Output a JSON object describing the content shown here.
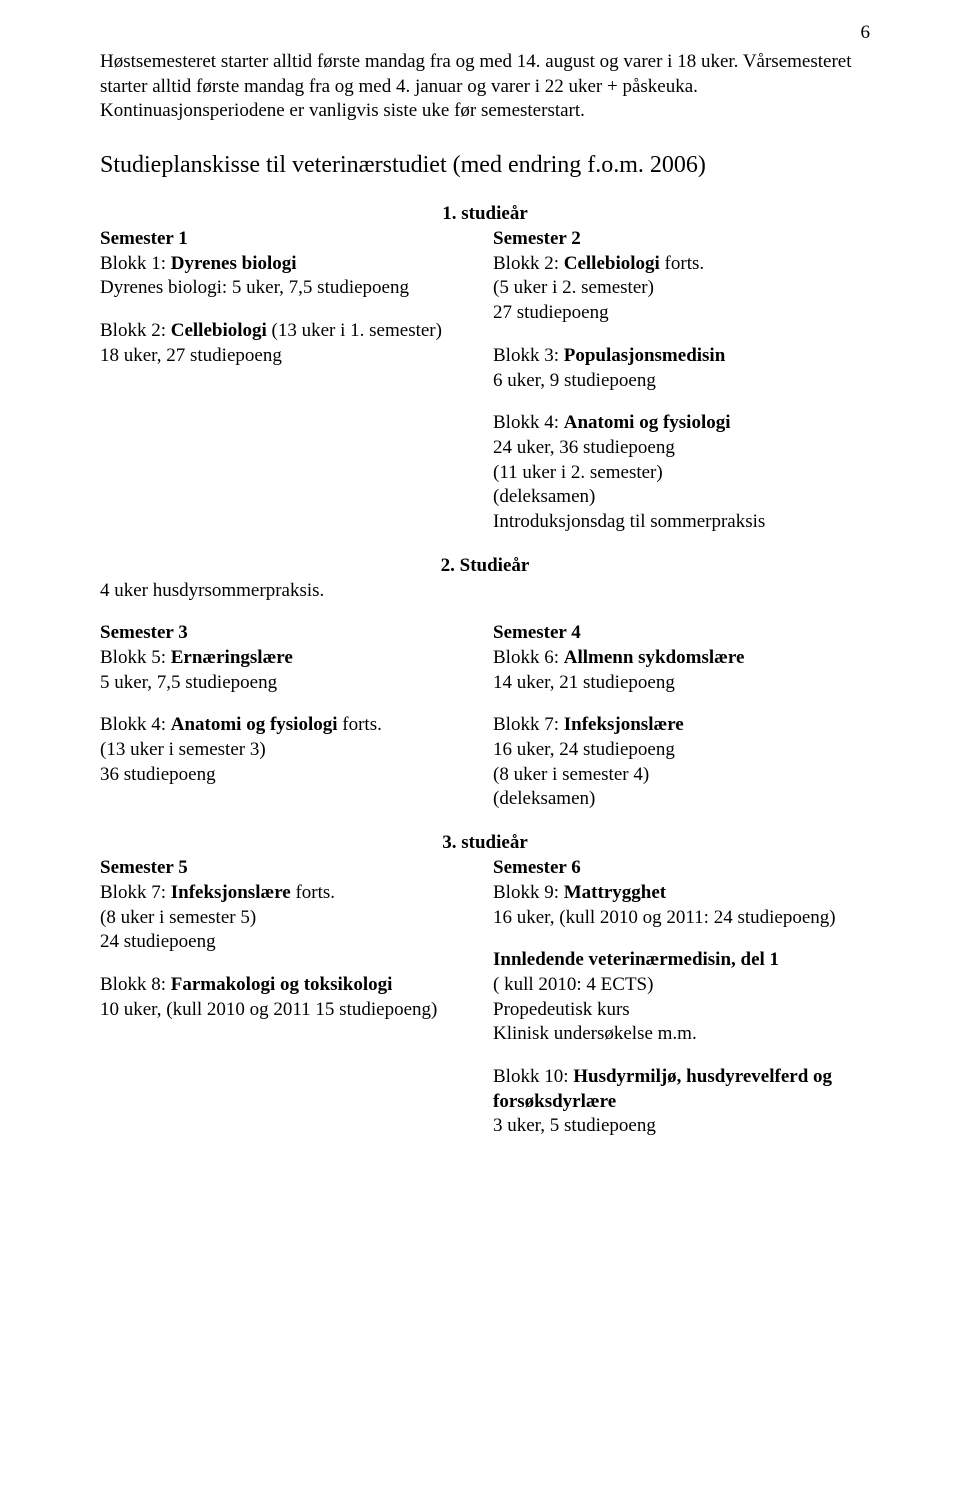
{
  "pageNumber": "6",
  "intro": "Høstsemesteret starter alltid første mandag fra og med 14. august og varer i 18 uker. Vårsemesteret starter alltid første mandag fra og med 4. januar og varer i 22 uker + påskeuka. Kontinuasjonsperiodene er vanligvis siste uke før semesterstart.",
  "sectionTitle": "Studieplanskisse til veterinærstudiet (med endring f.o.m. 2006)",
  "year1": {
    "heading": "1. studieår",
    "left": {
      "sem": "Semester 1",
      "l1a": "Blokk 1: ",
      "l1b": "Dyrenes biologi",
      "l2": "Dyrenes biologi: 5 uker, 7,5 studiepoeng",
      "l3a": "Blokk 2: ",
      "l3b": "Cellebiologi ",
      "l3c": "(13 uker i 1. semester)",
      "l4": "18 uker, 27 studiepoeng"
    },
    "right": {
      "sem": "Semester 2",
      "r1a": "Blokk 2: ",
      "r1b": "Cellebiologi ",
      "r1c": " forts.",
      "r2": "(5 uker i 2. semester)",
      "r3": "27 studiepoeng",
      "r4a": "Blokk 3: ",
      "r4b": "Populasjonsmedisin",
      "r5": "6 uker, 9 studiepoeng",
      "r6a": "Blokk 4: ",
      "r6b": "Anatomi og fysiologi",
      "r7": "24 uker, 36 studiepoeng",
      "r8": "(11 uker i 2. semester)",
      "r9": "(deleksamen)",
      "r10": "Introduksjonsdag til sommerpraksis"
    }
  },
  "year2": {
    "heading": "2. Studieår",
    "preline": "4 uker husdyrsommerpraksis.",
    "left": {
      "sem": "Semester 3",
      "l1a": "Blokk 5: ",
      "l1b": "Ernæringslære",
      "l2": "5 uker, 7,5 studiepoeng",
      "l3a": "Blokk 4: ",
      "l3b": "Anatomi og fysiologi ",
      "l3c": "forts.",
      "l4": "(13 uker i semester 3)",
      "l5": "36 studiepoeng"
    },
    "right": {
      "sem": "Semester 4",
      "r1a": "Blokk 6: ",
      "r1b": "Allmenn sykdomslære",
      "r2": "14 uker, 21 studiepoeng",
      "r3a": "Blokk 7: ",
      "r3b": "Infeksjonslære",
      "r4": "16 uker, 24 studiepoeng",
      "r5": "(8 uker i semester 4)",
      "r6": "(deleksamen)"
    }
  },
  "year3": {
    "heading": "3. studieår",
    "left": {
      "sem": "Semester 5",
      "l1a": "Blokk 7: ",
      "l1b": "Infeksjonslære ",
      "l1c": "forts.",
      "l2": "(8 uker i semester 5)",
      "l3": "24 studiepoeng",
      "l4a": "Blokk 8: ",
      "l4b": "Farmakologi og toksikologi",
      "l5": "10 uker, (kull 2010 og 2011 15 studiepoeng)"
    },
    "right": {
      "sem": "Semester 6",
      "r1a": "Blokk 9: ",
      "r1b": "Mattrygghet",
      "r2": "16 uker, (kull 2010 og 2011: 24 studiepoeng)",
      "r3": "Innledende veterinærmedisin, del 1",
      "r4": "( kull 2010: 4 ECTS)",
      "r5": "Propedeutisk kurs",
      "r6": "Klinisk undersøkelse m.m.",
      "r7a": "Blokk 10: ",
      "r7b": "Husdyrmiljø, husdyrevelferd og forsøksdyrlære",
      "r8": "3 uker, 5 studiepoeng"
    }
  }
}
